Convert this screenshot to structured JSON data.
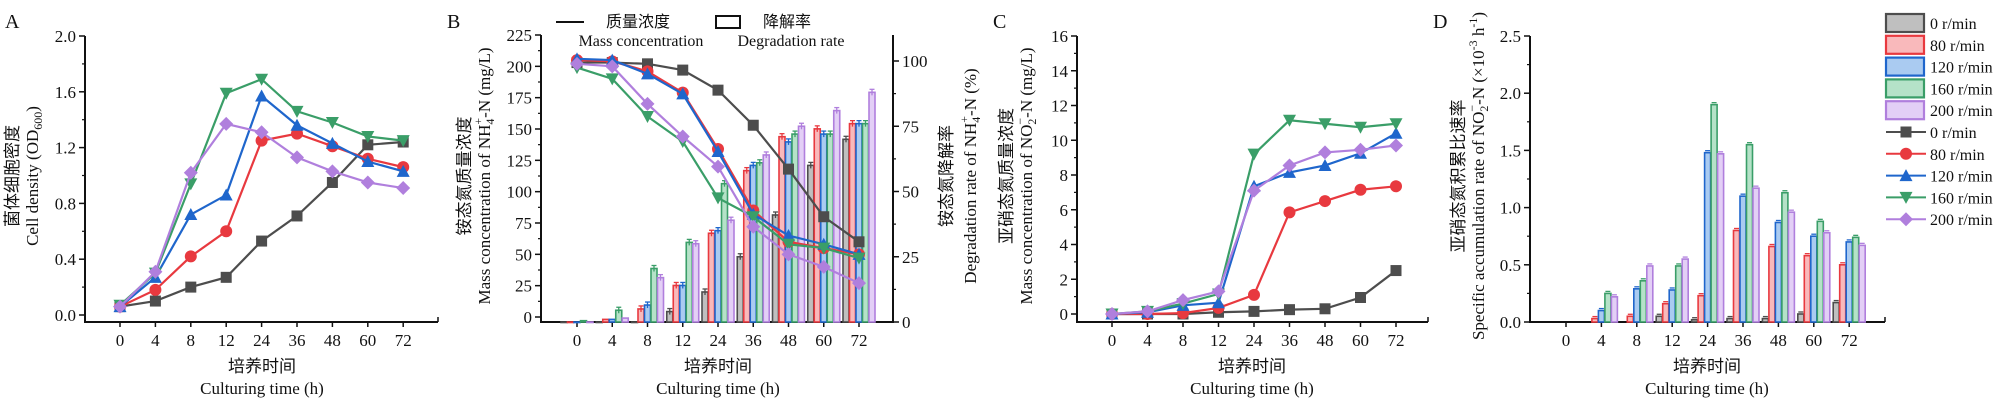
{
  "figure": {
    "series_names": [
      "0 r/min",
      "80 r/min",
      "120 r/min",
      "160 r/min",
      "200 r/min"
    ],
    "series_colors": {
      "line": [
        "#4d4d4d",
        "#e8393f",
        "#1f66cc",
        "#3a9e68",
        "#b07fdd"
      ],
      "fill": [
        "#bfbfbf",
        "#f9b9bb",
        "#aacbf1",
        "#b5e2c8",
        "#e3cff6"
      ]
    },
    "markers": [
      "square",
      "circle",
      "triangle-up",
      "triangle-down",
      "diamond"
    ],
    "legend": {
      "bar_entries": [
        "0 r/min",
        "80 r/min",
        "120 r/min",
        "160 r/min",
        "200 r/min"
      ],
      "line_entries": [
        "0 r/min",
        "80 r/min",
        "120 r/min",
        "160 r/min",
        "200 r/min"
      ],
      "placement": "right"
    }
  },
  "chart_data": [
    {
      "panel": "A",
      "type": "line",
      "title": "",
      "xlabel_cn": "培养时间",
      "xlabel": "Culturing time (h)",
      "ylabel_cn": "菌体细胞密度",
      "ylabel": "Cell density (OD600)",
      "ylabel_main": "Cell density (OD",
      "ylabel_sub": "600",
      "ylabel_end": ")",
      "categories": [
        "0",
        "4",
        "8",
        "12",
        "24",
        "36",
        "48",
        "60",
        "72"
      ],
      "ylim": [
        -0.05,
        2.0
      ],
      "yticks": [
        "0.0",
        "0.4",
        "0.8",
        "1.2",
        "1.6",
        "2.0"
      ],
      "ytick_values": [
        0,
        0.4,
        0.8,
        1.2,
        1.6,
        2.0
      ],
      "series": [
        {
          "name": "0 r/min",
          "values": [
            0.06,
            0.1,
            0.2,
            0.27,
            0.53,
            0.71,
            0.95,
            1.22,
            1.24
          ]
        },
        {
          "name": "80 r/min",
          "values": [
            0.06,
            0.18,
            0.42,
            0.6,
            1.25,
            1.3,
            1.21,
            1.12,
            1.06
          ]
        },
        {
          "name": "120 r/min",
          "values": [
            0.06,
            0.27,
            0.72,
            0.86,
            1.57,
            1.36,
            1.23,
            1.1,
            1.03
          ]
        },
        {
          "name": "160 r/min",
          "values": [
            0.07,
            0.3,
            0.94,
            1.59,
            1.69,
            1.46,
            1.38,
            1.28,
            1.25
          ]
        },
        {
          "name": "200 r/min",
          "values": [
            0.06,
            0.31,
            1.02,
            1.37,
            1.31,
            1.13,
            1.03,
            0.95,
            0.91
          ]
        }
      ]
    },
    {
      "panel": "B",
      "type": "bar+line",
      "title": "",
      "xlabel_cn": "培养时间",
      "xlabel": "Culturing time (h)",
      "ylabel_cn": "铵态氮质量浓度",
      "ylabel": "Mass concentration of NH4+-N (mg/L)",
      "ylabel_main": "Mass concentration of  NH",
      "ylabel_sub": "4",
      "ylabel_sup": "+",
      "ylabel_end": "-N (mg/L)",
      "y2label_cn": "铵态氮降解率",
      "y2label": "Degradation rate of NH4+-N (%)",
      "y2label_main": "Degradation rate of  NH",
      "y2label_sub": "4",
      "y2label_sup": "+",
      "y2label_end": "-N (%)",
      "legend_line_cn": "质量浓度",
      "legend_line_en": "Mass concentration",
      "legend_bar_cn": "降解率",
      "legend_bar_en": "Degradation rate",
      "categories": [
        "0",
        "4",
        "8",
        "12",
        "24",
        "36",
        "48",
        "60",
        "72"
      ],
      "ylim": [
        -7,
        225
      ],
      "yticks": [
        "0",
        "25",
        "50",
        "75",
        "100",
        "125",
        "150",
        "175",
        "200",
        "225"
      ],
      "ytick_values": [
        0,
        25,
        50,
        75,
        100,
        125,
        150,
        175,
        200,
        225
      ],
      "y2lim": [
        0,
        110
      ],
      "y2ticks": [
        "0",
        "25",
        "50",
        "75",
        "100"
      ],
      "y2tick_values": [
        0,
        25,
        50,
        75,
        100
      ],
      "line_series": [
        {
          "name": "0 r/min",
          "values": [
            203,
            203,
            202,
            197,
            181,
            153,
            118,
            80,
            60
          ]
        },
        {
          "name": "80 r/min",
          "values": [
            205,
            204,
            196,
            179,
            134,
            85,
            60,
            55,
            50
          ]
        },
        {
          "name": "120 r/min",
          "values": [
            206,
            205,
            194,
            178,
            132,
            82,
            65,
            58,
            50
          ]
        },
        {
          "name": "160 r/min",
          "values": [
            199,
            190,
            160,
            140,
            95,
            80,
            58,
            55,
            47
          ]
        },
        {
          "name": "200 r/min",
          "values": [
            202,
            200,
            170,
            144,
            120,
            72,
            50,
            40,
            27
          ]
        }
      ],
      "bar_series": [
        {
          "name": "0 r/min",
          "values": [
            0,
            0,
            0,
            4,
            11.5,
            25,
            41,
            60,
            70
          ]
        },
        {
          "name": "80 r/min",
          "values": [
            0,
            1,
            5,
            14,
            34,
            58,
            71,
            74,
            76
          ]
        },
        {
          "name": "120 r/min",
          "values": [
            0,
            1,
            6.5,
            14,
            35,
            60,
            69,
            72,
            76
          ]
        },
        {
          "name": "160 r/min",
          "values": [
            0.5,
            4.5,
            20.5,
            30.5,
            53,
            61,
            72,
            72,
            76
          ]
        },
        {
          "name": "200 r/min",
          "values": [
            0,
            1.5,
            17,
            30,
            39,
            64,
            75,
            81,
            88
          ]
        }
      ]
    },
    {
      "panel": "C",
      "type": "line",
      "title": "",
      "xlabel_cn": "培养时间",
      "xlabel": "Culturing time (h)",
      "ylabel_cn": "亚硝态氮质量浓度",
      "ylabel": "Mass concentration of NO2−-N (mg/L)",
      "ylabel_main": "Mass concentration of  NO",
      "ylabel_sub": "2",
      "ylabel_sup": "−",
      "ylabel_end": "-N (mg/L)",
      "categories": [
        "0",
        "4",
        "8",
        "12",
        "24",
        "36",
        "48",
        "60",
        "72"
      ],
      "ylim": [
        -0.5,
        16
      ],
      "yticks": [
        "0",
        "2",
        "4",
        "6",
        "8",
        "10",
        "12",
        "14",
        "16"
      ],
      "ytick_values": [
        0,
        2,
        4,
        6,
        8,
        10,
        12,
        14,
        16
      ],
      "series": [
        {
          "name": "0 r/min",
          "values": [
            0,
            0,
            0,
            0.1,
            0.15,
            0.25,
            0.3,
            0.95,
            2.5
          ]
        },
        {
          "name": "80 r/min",
          "values": [
            0,
            0,
            0.05,
            0.35,
            1.1,
            5.85,
            6.5,
            7.15,
            7.35
          ]
        },
        {
          "name": "120 r/min",
          "values": [
            0,
            0.1,
            0.5,
            0.65,
            7.35,
            8.15,
            8.55,
            9.25,
            10.4
          ]
        },
        {
          "name": "160 r/min",
          "values": [
            0,
            0.15,
            0.6,
            1.15,
            9.2,
            11.15,
            10.95,
            10.75,
            10.95
          ]
        },
        {
          "name": "200 r/min",
          "values": [
            0,
            0.15,
            0.8,
            1.3,
            7.1,
            8.55,
            9.3,
            9.45,
            9.7
          ]
        }
      ]
    },
    {
      "panel": "D",
      "type": "bar",
      "title": "",
      "xlabel_cn": "培养时间",
      "xlabel": "Culturing time (h)",
      "ylabel_cn": "亚硝态氮积累比速率",
      "ylabel": "Specific accumulation rate of NO2−-N (×10−3 h−1)",
      "ylabel_main": "Specific accumulation rate of  NO",
      "ylabel_sub": "2",
      "ylabel_sup": "−",
      "ylabel_end": "-N (×10",
      "ylabel_sup2": "-3",
      "ylabel_end2": " h",
      "ylabel_sup3": "-1",
      "ylabel_end3": ")",
      "categories": [
        "0",
        "4",
        "8",
        "12",
        "24",
        "36",
        "48",
        "60",
        "72"
      ],
      "ylim": [
        0,
        2.5
      ],
      "yticks": [
        "0.0",
        "0.5",
        "1.0",
        "1.5",
        "2.0",
        "2.5"
      ],
      "ytick_values": [
        0,
        0.5,
        1.0,
        1.5,
        2.0,
        2.5
      ],
      "series": [
        {
          "name": "0 r/min",
          "values": [
            0,
            0,
            0,
            0.05,
            0.02,
            0.03,
            0.03,
            0.07,
            0.17
          ]
        },
        {
          "name": "80 r/min",
          "values": [
            0,
            0.03,
            0.05,
            0.16,
            0.23,
            0.8,
            0.66,
            0.58,
            0.5
          ]
        },
        {
          "name": "120 r/min",
          "values": [
            0,
            0.1,
            0.29,
            0.28,
            1.48,
            1.1,
            0.87,
            0.75,
            0.7
          ]
        },
        {
          "name": "160 r/min",
          "values": [
            0,
            0.25,
            0.36,
            0.49,
            1.9,
            1.55,
            1.13,
            0.88,
            0.74
          ]
        },
        {
          "name": "200 r/min",
          "values": [
            0,
            0.22,
            0.49,
            0.55,
            1.47,
            1.17,
            0.96,
            0.78,
            0.67
          ]
        }
      ]
    }
  ],
  "panel_letters": [
    "A",
    "B",
    "C",
    "D"
  ]
}
